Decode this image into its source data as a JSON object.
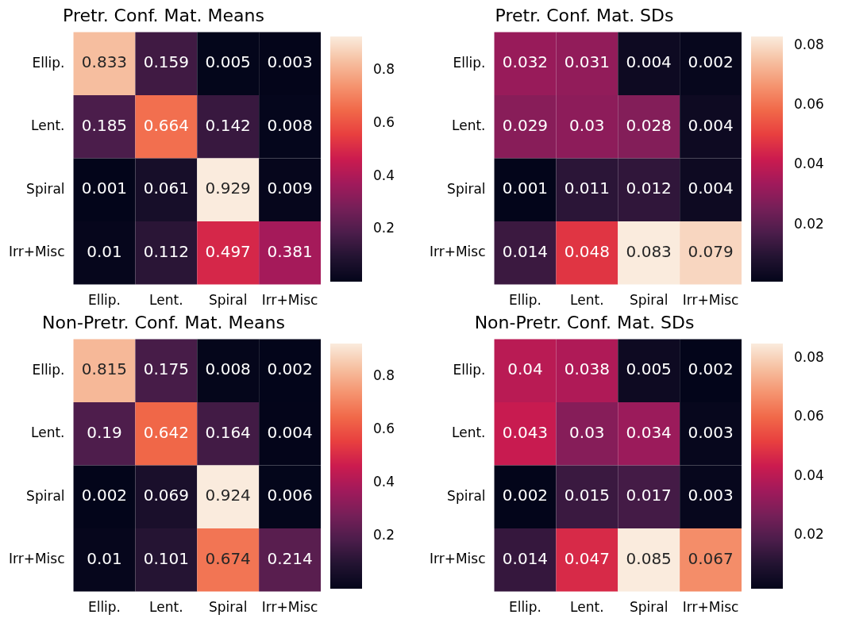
{
  "chart_data": [
    {
      "type": "heatmap",
      "title": "Pretr. Conf. Mat. Means",
      "categories": [
        "Ellip.",
        "Lent.",
        "Spiral",
        "Irr+Misc"
      ],
      "y_categories": [
        "Ellip.",
        "Lent.",
        "Spiral",
        "Irr+Misc"
      ],
      "cells": [
        [
          0.833,
          0.159,
          0.005,
          0.003
        ],
        [
          0.185,
          0.664,
          0.142,
          0.008
        ],
        [
          0.001,
          0.061,
          0.929,
          0.009
        ],
        [
          0.01,
          0.112,
          0.497,
          0.381
        ]
      ],
      "clim": [
        0.001,
        0.929
      ],
      "cticks": [
        0.2,
        0.4,
        0.6,
        0.8
      ],
      "data_labels": true
    },
    {
      "type": "heatmap",
      "title": "Pretr. Conf. Mat. SDs",
      "categories": [
        "Ellip.",
        "Lent.",
        "Spiral",
        "Irr+Misc"
      ],
      "y_categories": [
        "Ellip.",
        "Lent.",
        "Spiral",
        "Irr+Misc"
      ],
      "cells": [
        [
          0.032,
          0.031,
          0.004,
          0.002
        ],
        [
          0.029,
          0.03,
          0.028,
          0.004
        ],
        [
          0.001,
          0.011,
          0.012,
          0.004
        ],
        [
          0.014,
          0.048,
          0.083,
          0.079
        ]
      ],
      "clim": [
        0.001,
        0.083
      ],
      "cticks": [
        0.02,
        0.04,
        0.06,
        0.08
      ],
      "data_labels": true
    },
    {
      "type": "heatmap",
      "title": "Non-Pretr. Conf. Mat. Means",
      "categories": [
        "Ellip.",
        "Lent.",
        "Spiral",
        "Irr+Misc"
      ],
      "y_categories": [
        "Ellip.",
        "Lent.",
        "Spiral",
        "Irr+Misc"
      ],
      "cells": [
        [
          0.815,
          0.175,
          0.008,
          0.002
        ],
        [
          0.19,
          0.642,
          0.164,
          0.004
        ],
        [
          0.002,
          0.069,
          0.924,
          0.006
        ],
        [
          0.01,
          0.101,
          0.674,
          0.214
        ]
      ],
      "clim": [
        0.002,
        0.924
      ],
      "cticks": [
        0.2,
        0.4,
        0.6,
        0.8
      ],
      "data_labels": true
    },
    {
      "type": "heatmap",
      "title": "Non-Pretr. Conf. Mat. SDs",
      "categories": [
        "Ellip.",
        "Lent.",
        "Spiral",
        "Irr+Misc"
      ],
      "y_categories": [
        "Ellip.",
        "Lent.",
        "Spiral",
        "Irr+Misc"
      ],
      "cells": [
        [
          0.04,
          0.038,
          0.005,
          0.002
        ],
        [
          0.043,
          0.03,
          0.034,
          0.003
        ],
        [
          0.002,
          0.015,
          0.017,
          0.003
        ],
        [
          0.014,
          0.047,
          0.085,
          0.067
        ]
      ],
      "clim": [
        0.002,
        0.085
      ],
      "cticks": [
        0.02,
        0.04,
        0.06,
        0.08
      ],
      "data_labels": true
    }
  ]
}
